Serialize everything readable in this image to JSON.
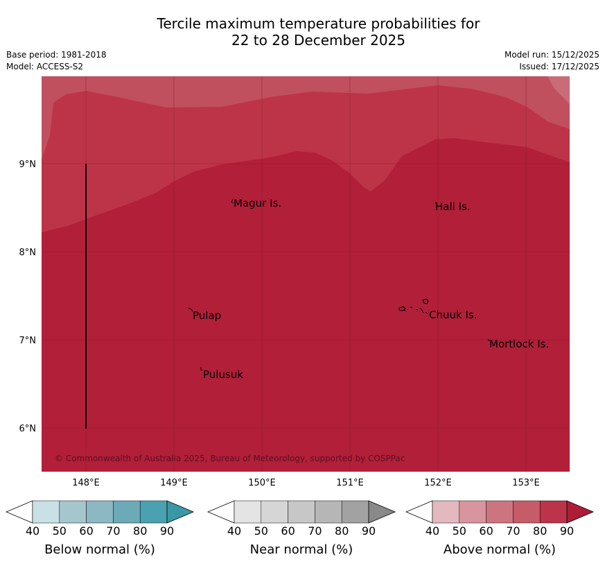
{
  "title": {
    "line1": "Tercile maximum temperature probabilities for",
    "line2": "22 to 28 December 2025"
  },
  "meta": {
    "base_period": "Base period: 1981-2018",
    "model": "Model: ACCESS-S2",
    "model_run": "Model run: 15/12/2025",
    "issued": "Issued: 17/12/2025"
  },
  "map": {
    "lat_labels": [
      "9°N",
      "8°N",
      "7°N",
      "6°N"
    ],
    "lon_labels": [
      "148°E",
      "149°E",
      "150°E",
      "151°E",
      "152°E",
      "153°E"
    ],
    "places": [
      "Magur Is.",
      "Hall Is.",
      "Pulap",
      "Chuuk Is.",
      "Mortlock Is.",
      "Pulusuk"
    ],
    "copyright": "© Commonwealth of Australia 2025, Bureau of Meteorology, supported by COSPPac",
    "shading_colors": {
      "above_60_70": "#c96c78",
      "above_70_80": "#c0505e",
      "above_80_90": "#bd3448",
      "above_90": "#b21f38"
    }
  },
  "legends": [
    {
      "title": "Below normal (%)",
      "ticks": [
        "40",
        "50",
        "60",
        "70",
        "80",
        "90"
      ],
      "colors": [
        "#c9e0e6",
        "#a5c6cc",
        "#8bb8c3",
        "#6caab8",
        "#4aa2b1",
        "#3a98a6"
      ]
    },
    {
      "title": "Near normal (%)",
      "ticks": [
        "40",
        "50",
        "60",
        "70",
        "80",
        "90"
      ],
      "colors": [
        "#e4e4e4",
        "#d6d6d6",
        "#c7c7c7",
        "#b6b6b6",
        "#a2a2a2",
        "#898989"
      ]
    },
    {
      "title": "Above normal (%)",
      "ticks": [
        "40",
        "50",
        "60",
        "70",
        "80",
        "90"
      ],
      "colors": [
        "#e3b8bf",
        "#d8959f",
        "#cc7580",
        "#c65c69",
        "#bc344a",
        "#ae1d37"
      ]
    }
  ]
}
